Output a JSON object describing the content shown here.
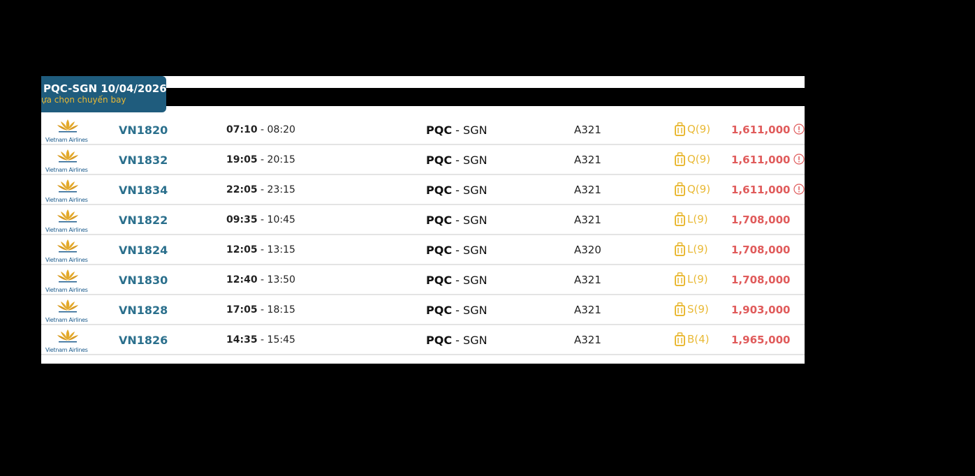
{
  "header": {
    "title": "PQC-SGN 10/04/2026",
    "subtitle": "ựa chọn chuyến bay"
  },
  "flights": {
    "rows": [
      {
        "airline": "Vietnam Airlines",
        "flight": "VN1820",
        "departure": "07:10",
        "arrival": "- 08:20",
        "from": "PQC",
        "to": "- SGN",
        "aircraft": "A321",
        "fare_class": "Q(9)",
        "price": "1,611,000",
        "alert": true
      },
      {
        "airline": "Vietnam Airlines",
        "flight": "VN1832",
        "departure": "19:05",
        "arrival": "- 20:15",
        "from": "PQC",
        "to": "- SGN",
        "aircraft": "A321",
        "fare_class": "Q(9)",
        "price": "1,611,000",
        "alert": true
      },
      {
        "airline": "Vietnam Airlines",
        "flight": "VN1834",
        "departure": "22:05",
        "arrival": "- 23:15",
        "from": "PQC",
        "to": "- SGN",
        "aircraft": "A321",
        "fare_class": "Q(9)",
        "price": "1,611,000",
        "alert": true
      },
      {
        "airline": "Vietnam Airlines",
        "flight": "VN1822",
        "departure": "09:35",
        "arrival": "- 10:45",
        "from": "PQC",
        "to": "- SGN",
        "aircraft": "A321",
        "fare_class": "L(9)",
        "price": "1,708,000",
        "alert": false
      },
      {
        "airline": "Vietnam Airlines",
        "flight": "VN1824",
        "departure": "12:05",
        "arrival": "- 13:15",
        "from": "PQC",
        "to": "- SGN",
        "aircraft": "A320",
        "fare_class": "L(9)",
        "price": "1,708,000",
        "alert": false
      },
      {
        "airline": "Vietnam Airlines",
        "flight": "VN1830",
        "departure": "12:40",
        "arrival": "- 13:50",
        "from": "PQC",
        "to": "- SGN",
        "aircraft": "A321",
        "fare_class": "L(9)",
        "price": "1,708,000",
        "alert": false
      },
      {
        "airline": "Vietnam Airlines",
        "flight": "VN1828",
        "departure": "17:05",
        "arrival": "- 18:15",
        "from": "PQC",
        "to": "- SGN",
        "aircraft": "A321",
        "fare_class": "S(9)",
        "price": "1,903,000",
        "alert": false
      },
      {
        "airline": "Vietnam Airlines",
        "flight": "VN1826",
        "departure": "14:35",
        "arrival": "- 15:45",
        "from": "PQC",
        "to": "- SGN",
        "aircraft": "A321",
        "fare_class": "B(4)",
        "price": "1,965,000",
        "alert": false
      }
    ]
  }
}
